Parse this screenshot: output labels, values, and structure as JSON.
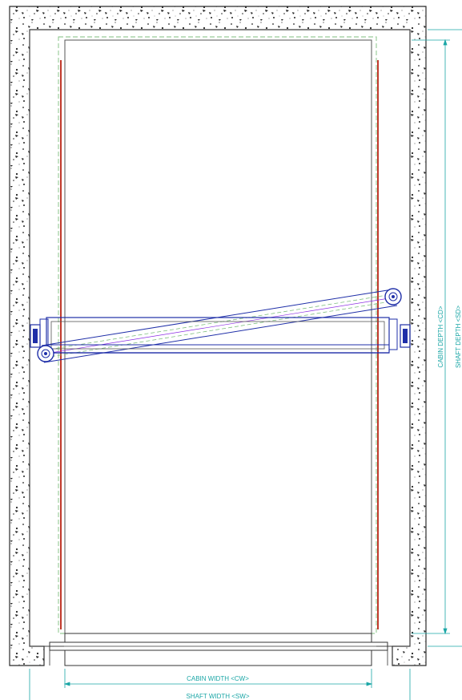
{
  "labels": {
    "cabin_width": "CABIN WIDTH <CW>",
    "shaft_width": "SHAFT WIDTH <SW>",
    "cabin_depth": "CABIN DEPTH <CD>",
    "shaft_depth": "SHAFT DEPTH <SD>"
  },
  "colors": {
    "wall": "#2b2b2b",
    "dimension": "#1aa6a6",
    "rail": "#c0392b",
    "frame": "#1f2fa8",
    "dashed_outline": "#7fbf7f"
  }
}
